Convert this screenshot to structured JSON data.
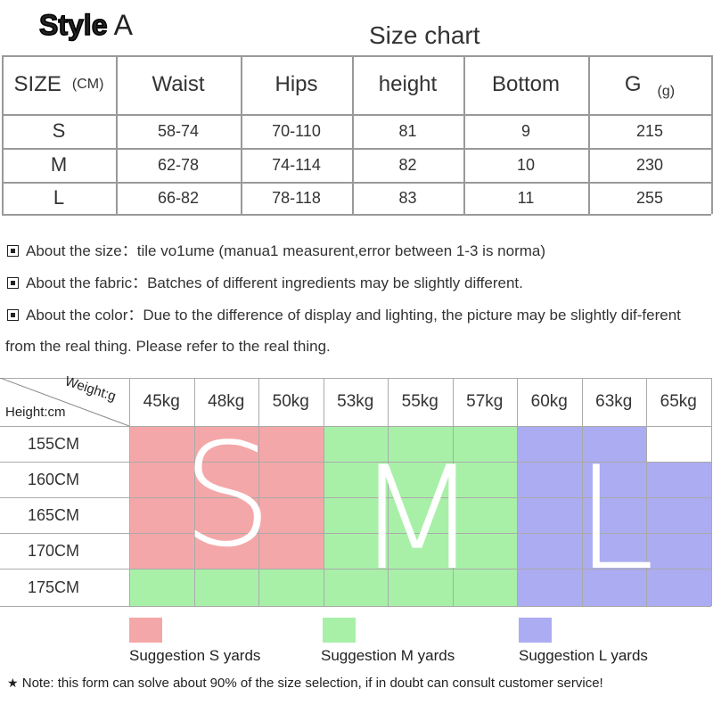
{
  "title": {
    "bold": "Style",
    "letter": "A"
  },
  "size_chart": {
    "title": "Size chart",
    "header": [
      {
        "label": "SIZE",
        "unit": "(CM)"
      },
      {
        "label": "Waist"
      },
      {
        "label": "Hips"
      },
      {
        "label": "height"
      },
      {
        "label": "Bottom"
      },
      {
        "label": "G",
        "unit": "(g)"
      }
    ],
    "rows": [
      [
        "S",
        "58-74",
        "70-110",
        81,
        9,
        215
      ],
      [
        "M",
        "62-78",
        "74-114",
        82,
        10,
        230
      ],
      [
        "L",
        "66-82",
        "78-118",
        83,
        11,
        255
      ]
    ]
  },
  "notes": [
    {
      "label": "About the size：",
      "text": "tile vo1ume (manua1 measurent,error between 1-3 is norma)"
    },
    {
      "label": "About the fabric：",
      "text": "Batches of different ingredients may be slightly different."
    },
    {
      "label": "About the color：",
      "text": "Due to the difference of display and lighting, the picture may be slightly dif-ferent from the real thing. Please refer to the real thing."
    }
  ],
  "size_grid": {
    "weight_label": "Weight:g",
    "height_label": "Height:cm",
    "weights": [
      "45kg",
      "48kg",
      "50kg",
      "53kg",
      "55kg",
      "57kg",
      "60kg",
      "63kg",
      "65kg"
    ],
    "heights": [
      "155CM",
      "160CM",
      "165CM",
      "170CM",
      "175CM"
    ],
    "sizes": [
      "S",
      "M",
      "L"
    ]
  },
  "legend": [
    {
      "label": "Suggestion S yards",
      "color": "#f4a7a8"
    },
    {
      "label": "Suggestion M yards",
      "color": "#a8f0a8"
    },
    {
      "label": "Suggestion L yards",
      "color": "#acacf2"
    }
  ],
  "footnote": "Note: this form can solve about 90% of the size selection, if in doubt can consult customer service!"
}
